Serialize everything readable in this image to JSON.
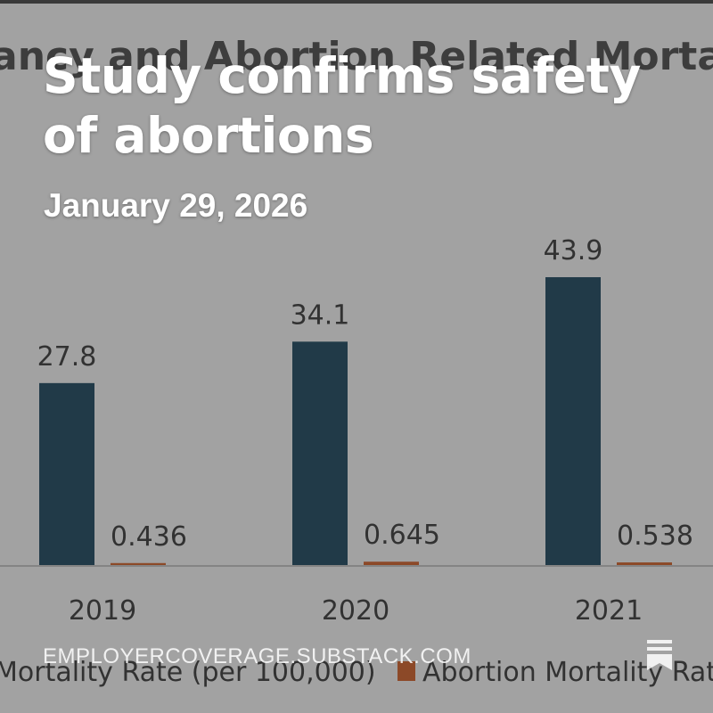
{
  "post": {
    "headline": "Study confirms safety of abortions",
    "date": "January 29, 2026",
    "source": "EMPLOYERCOVERAGE.SUBSTACK.COM",
    "bookmark_icon": "substack-bookmark-icon"
  },
  "chart_data": {
    "type": "bar",
    "title": "ancy and Abortion Related Mortality",
    "categories": [
      "2019",
      "2020",
      "2021"
    ],
    "series": [
      {
        "name": "Mortality Rate (per 100,000)",
        "color": "#0f3a52",
        "values": [
          27.8,
          34.1,
          43.9
        ],
        "labels": [
          "27.8",
          "34.1",
          "43.9"
        ]
      },
      {
        "name": "Abortion Mortality Rate",
        "color": "#c7541b",
        "values": [
          0.436,
          0.645,
          0.538
        ],
        "labels": [
          "0.436",
          "0.645",
          "0.538"
        ]
      }
    ],
    "ylim": [
      0,
      50
    ],
    "legend_position": "bottom",
    "legend_visible_text": [
      "Mortality Rate (per 100,000)",
      "Abortion Mortality Rate"
    ]
  }
}
